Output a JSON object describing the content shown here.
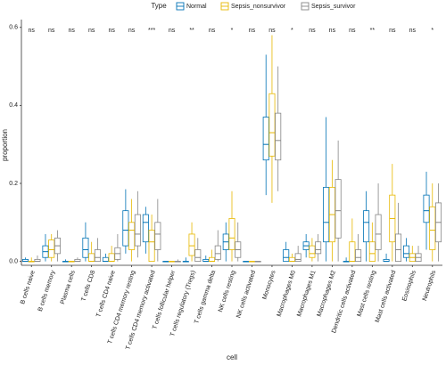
{
  "chart_data": {
    "type": "box",
    "legend_title": "Type",
    "legend_position": "top",
    "x_label": "cell",
    "y_label": "proportion",
    "ylim": [
      -0.01,
      0.62
    ],
    "yticks": [
      {
        "value": 0,
        "label": "0.0"
      },
      0.2,
      0.4,
      0.6
    ],
    "categories": [
      "B cells naive",
      "B cells memory",
      "Plasma cells",
      "T cells CD8",
      "T cells CD4 naive",
      "T cells CD4 memory resting",
      "T cells CD4 memory activated",
      "T cells follicular helper",
      "T cells regulatory (Tregs)",
      "T cells gamma delta",
      "NK cells resting",
      "NK cells activated",
      "Monocytes",
      "Macrophages M0",
      "Macrophages M1",
      "Macrophages M2",
      "Dendritic cells activated",
      "Mast cells resting",
      "Mast cells activated",
      "Eosinophils",
      "Neutrophils"
    ],
    "significance": [
      "ns",
      "ns",
      "ns",
      "ns",
      "ns",
      "ns",
      "***",
      "ns",
      "**",
      "ns",
      "*",
      "ns",
      "ns",
      "*",
      "ns",
      "ns",
      "ns",
      "**",
      "ns",
      "ns",
      "*"
    ],
    "series": [
      {
        "name": "Normal",
        "color": "#0072B5",
        "boxes": [
          {
            "min": 0,
            "q1": 0,
            "median": 0,
            "q3": 0.005,
            "max": 0.01
          },
          {
            "min": 0,
            "q1": 0.01,
            "median": 0.025,
            "q3": 0.04,
            "max": 0.07
          },
          {
            "min": 0,
            "q1": 0,
            "median": 0,
            "q3": 0,
            "max": 0.005
          },
          {
            "min": 0,
            "q1": 0.01,
            "median": 0.03,
            "q3": 0.06,
            "max": 0.1
          },
          {
            "min": 0,
            "q1": 0,
            "median": 0,
            "q3": 0.01,
            "max": 0.02
          },
          {
            "min": 0.02,
            "q1": 0.04,
            "median": 0.08,
            "q3": 0.13,
            "max": 0.185
          },
          {
            "min": 0.02,
            "q1": 0.05,
            "median": 0.1,
            "q3": 0.12,
            "max": 0.14
          },
          {
            "min": 0,
            "q1": 0,
            "median": 0,
            "q3": 0,
            "max": 0
          },
          {
            "min": 0,
            "q1": 0,
            "median": 0,
            "q3": 0,
            "max": 0.01
          },
          {
            "min": 0,
            "q1": 0,
            "median": 0,
            "q3": 0.005,
            "max": 0.015
          },
          {
            "min": 0,
            "q1": 0.03,
            "median": 0.05,
            "q3": 0.07,
            "max": 0.1
          },
          {
            "min": 0,
            "q1": 0,
            "median": 0,
            "q3": 0,
            "max": 0
          },
          {
            "min": 0.17,
            "q1": 0.26,
            "median": 0.3,
            "q3": 0.37,
            "max": 0.53
          },
          {
            "min": 0,
            "q1": 0,
            "median": 0.01,
            "q3": 0.03,
            "max": 0.05
          },
          {
            "min": 0.01,
            "q1": 0.03,
            "median": 0.04,
            "q3": 0.05,
            "max": 0.07
          },
          {
            "min": 0,
            "q1": 0.05,
            "median": 0.1,
            "q3": 0.19,
            "max": 0.37
          },
          {
            "min": 0,
            "q1": 0,
            "median": 0,
            "q3": 0,
            "max": 0.01
          },
          {
            "min": 0,
            "q1": 0.05,
            "median": 0.1,
            "q3": 0.13,
            "max": 0.18
          },
          {
            "min": 0,
            "q1": 0,
            "median": 0,
            "q3": 0.005,
            "max": 0.02
          },
          {
            "min": 0,
            "q1": 0.01,
            "median": 0.02,
            "q3": 0.04,
            "max": 0.06
          },
          {
            "min": 0.03,
            "q1": 0.1,
            "median": 0.13,
            "q3": 0.17,
            "max": 0.23
          }
        ]
      },
      {
        "name": "Sepsis_nonsurvivor",
        "color": "#E7B800",
        "boxes": [
          {
            "min": 0,
            "q1": 0,
            "median": 0,
            "q3": 0,
            "max": 0.01
          },
          {
            "min": 0,
            "q1": 0.01,
            "median": 0.03,
            "q3": 0.055,
            "max": 0.07
          },
          {
            "min": 0,
            "q1": 0,
            "median": 0,
            "q3": 0,
            "max": 0
          },
          {
            "min": 0,
            "q1": 0,
            "median": 0,
            "q3": 0.02,
            "max": 0.05
          },
          {
            "min": 0,
            "q1": 0,
            "median": 0,
            "q3": 0.02,
            "max": 0.04
          },
          {
            "min": 0,
            "q1": 0.03,
            "median": 0.08,
            "q3": 0.1,
            "max": 0.16
          },
          {
            "min": 0,
            "q1": 0,
            "median": 0.05,
            "q3": 0.08,
            "max": 0.12
          },
          {
            "min": 0,
            "q1": 0,
            "median": 0,
            "q3": 0,
            "max": 0
          },
          {
            "min": 0,
            "q1": 0.015,
            "median": 0.04,
            "q3": 0.07,
            "max": 0.1
          },
          {
            "min": 0,
            "q1": 0,
            "median": 0,
            "q3": 0.01,
            "max": 0.03
          },
          {
            "min": 0,
            "q1": 0.03,
            "median": 0.06,
            "q3": 0.11,
            "max": 0.18
          },
          {
            "min": 0,
            "q1": 0,
            "median": 0,
            "q3": 0,
            "max": 0
          },
          {
            "min": 0.15,
            "q1": 0.27,
            "median": 0.33,
            "q3": 0.43,
            "max": 0.58
          },
          {
            "min": 0,
            "q1": 0,
            "median": 0,
            "q3": 0.01,
            "max": 0.02
          },
          {
            "min": 0,
            "q1": 0.01,
            "median": 0.02,
            "q3": 0.04,
            "max": 0.06
          },
          {
            "min": 0,
            "q1": 0.05,
            "median": 0.12,
            "q3": 0.19,
            "max": 0.26
          },
          {
            "min": 0,
            "q1": 0,
            "median": 0,
            "q3": 0.05,
            "max": 0.11
          },
          {
            "min": 0,
            "q1": 0,
            "median": 0.02,
            "q3": 0.05,
            "max": 0.1
          },
          {
            "min": 0,
            "q1": 0.05,
            "median": 0.11,
            "q3": 0.17,
            "max": 0.25
          },
          {
            "min": 0,
            "q1": 0,
            "median": 0.01,
            "q3": 0.02,
            "max": 0.04
          },
          {
            "min": 0,
            "q1": 0.03,
            "median": 0.08,
            "q3": 0.14,
            "max": 0.2
          }
        ]
      },
      {
        "name": "Sepsis_survivor",
        "color": "#868686",
        "boxes": [
          {
            "min": 0,
            "q1": 0,
            "median": 0,
            "q3": 0.005,
            "max": 0.015
          },
          {
            "min": 0,
            "q1": 0.02,
            "median": 0.04,
            "q3": 0.06,
            "max": 0.08
          },
          {
            "min": 0,
            "q1": 0,
            "median": 0,
            "q3": 0.005,
            "max": 0.01
          },
          {
            "min": 0,
            "q1": 0,
            "median": 0.01,
            "q3": 0.03,
            "max": 0.06
          },
          {
            "min": 0,
            "q1": 0.005,
            "median": 0.02,
            "q3": 0.035,
            "max": 0.07
          },
          {
            "min": 0.01,
            "q1": 0.04,
            "median": 0.07,
            "q3": 0.12,
            "max": 0.18
          },
          {
            "min": 0,
            "q1": 0.03,
            "median": 0.07,
            "q3": 0.1,
            "max": 0.16
          },
          {
            "min": 0,
            "q1": 0,
            "median": 0,
            "q3": 0,
            "max": 0.005
          },
          {
            "min": 0,
            "q1": 0,
            "median": 0.01,
            "q3": 0.03,
            "max": 0.06
          },
          {
            "min": 0,
            "q1": 0.005,
            "median": 0.02,
            "q3": 0.04,
            "max": 0.08
          },
          {
            "min": 0,
            "q1": 0.01,
            "median": 0.03,
            "q3": 0.05,
            "max": 0.1
          },
          {
            "min": 0,
            "q1": 0,
            "median": 0,
            "q3": 0,
            "max": 0
          },
          {
            "min": 0.18,
            "q1": 0.26,
            "median": 0.31,
            "q3": 0.38,
            "max": 0.5
          },
          {
            "min": 0,
            "q1": 0,
            "median": 0.005,
            "q3": 0.02,
            "max": 0.04
          },
          {
            "min": 0,
            "q1": 0.02,
            "median": 0.03,
            "q3": 0.05,
            "max": 0.07
          },
          {
            "min": 0,
            "q1": 0.06,
            "median": 0.13,
            "q3": 0.21,
            "max": 0.31
          },
          {
            "min": 0,
            "q1": 0,
            "median": 0.01,
            "q3": 0.03,
            "max": 0.07
          },
          {
            "min": 0,
            "q1": 0.03,
            "median": 0.07,
            "q3": 0.12,
            "max": 0.2
          },
          {
            "min": 0,
            "q1": 0,
            "median": 0.03,
            "q3": 0.07,
            "max": 0.15
          },
          {
            "min": 0,
            "q1": 0,
            "median": 0.01,
            "q3": 0.02,
            "max": 0.04
          },
          {
            "min": 0,
            "q1": 0.05,
            "median": 0.1,
            "q3": 0.15,
            "max": 0.2
          }
        ]
      }
    ]
  }
}
